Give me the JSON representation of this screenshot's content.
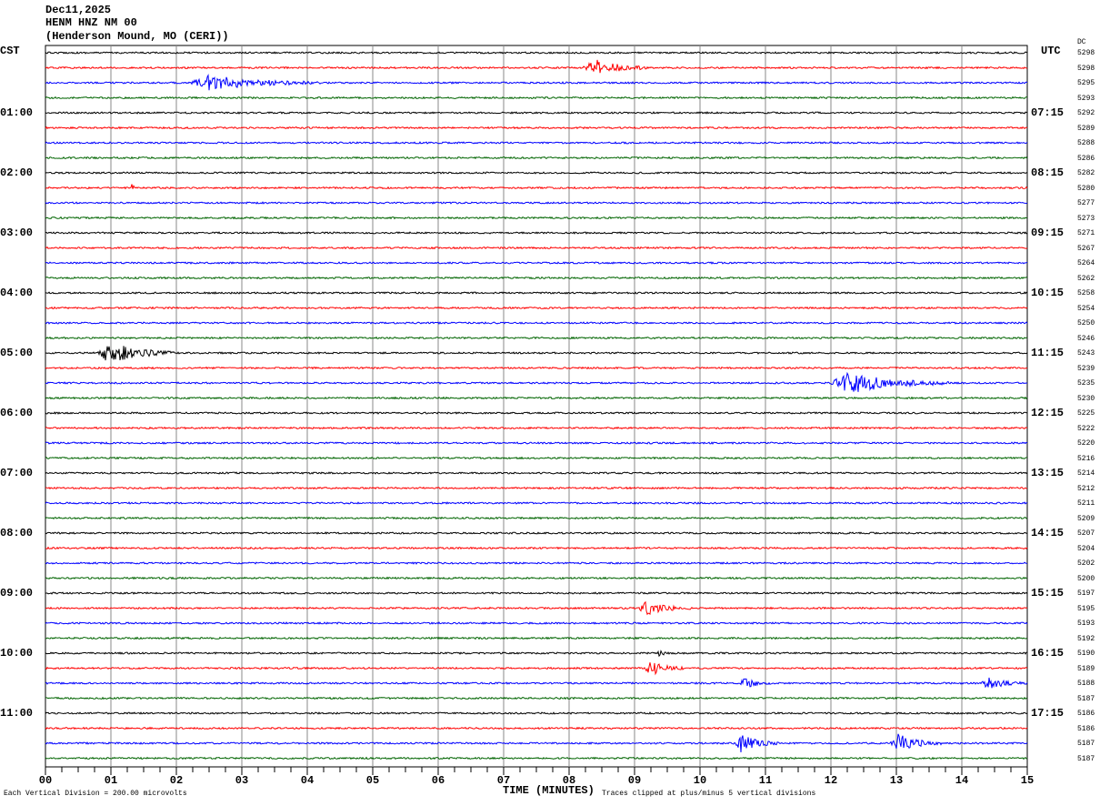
{
  "header": {
    "date": "Dec11,2025",
    "station": "HENM HNZ NM 00",
    "location": "(Henderson Mound, MO (CERI))"
  },
  "left_tz": "CST",
  "right_tz": "UTC",
  "dc_label": "DC",
  "footer": {
    "scale": "Each Vertical Division =  200.00 microvolts",
    "xlabel": "TIME (MINUTES)",
    "clip": "Traces clipped at plus/minus 5 vertical divisions"
  },
  "chart_data": {
    "type": "line",
    "title": "HENM HNZ NM 00 helicorder",
    "xlabel": "TIME (MINUTES)",
    "xlim": [
      0,
      15
    ],
    "x_ticks": [
      "00",
      "01",
      "02",
      "03",
      "04",
      "05",
      "06",
      "07",
      "08",
      "09",
      "10",
      "11",
      "12",
      "13",
      "14",
      "15"
    ],
    "trace_colors": [
      "#000000",
      "#ff0000",
      "#0000ff",
      "#006400"
    ],
    "trace_count": 48,
    "left_hour_labels": [
      "01:00",
      "02:00",
      "03:00",
      "04:00",
      "05:00",
      "06:00",
      "07:00",
      "08:00",
      "09:00",
      "10:00",
      "11:00"
    ],
    "right_hour_labels": [
      "07:15",
      "08:15",
      "09:15",
      "10:15",
      "11:15",
      "12:15",
      "13:15",
      "14:15",
      "15:15",
      "16:15",
      "17:15"
    ],
    "dc_values": [
      "5298",
      "5298",
      "5295",
      "5293",
      "5292",
      "5289",
      "5288",
      "5286",
      "5282",
      "5280",
      "5277",
      "5273",
      "5271",
      "5267",
      "5264",
      "5262",
      "5258",
      "5254",
      "5250",
      "5246",
      "5243",
      "5239",
      "5235",
      "5230",
      "5225",
      "5222",
      "5220",
      "5216",
      "5214",
      "5212",
      "5211",
      "5209",
      "5207",
      "5204",
      "5202",
      "5200",
      "5197",
      "5195",
      "5193",
      "5192",
      "5190",
      "5189",
      "5188",
      "5187",
      "5186",
      "5186",
      "5187",
      "5187"
    ],
    "events": [
      {
        "trace": 1,
        "start_min": 8.2,
        "duration_min": 1.0,
        "amplitude_div": 2.5
      },
      {
        "trace": 2,
        "start_min": 2.2,
        "duration_min": 2.0,
        "amplitude_div": 2.0
      },
      {
        "trace": 9,
        "start_min": 1.3,
        "duration_min": 0.1,
        "amplitude_div": 1.0
      },
      {
        "trace": 20,
        "start_min": 0.8,
        "duration_min": 1.2,
        "amplitude_div": 3.0
      },
      {
        "trace": 22,
        "start_min": 12.0,
        "duration_min": 1.8,
        "amplitude_div": 3.2
      },
      {
        "trace": 37,
        "start_min": 9.05,
        "duration_min": 0.8,
        "amplitude_div": 2.0
      },
      {
        "trace": 40,
        "start_min": 9.35,
        "duration_min": 0.15,
        "amplitude_div": 1.2
      },
      {
        "trace": 41,
        "start_min": 9.15,
        "duration_min": 0.6,
        "amplitude_div": 2.0
      },
      {
        "trace": 42,
        "start_min": 10.6,
        "duration_min": 0.5,
        "amplitude_div": 1.5
      },
      {
        "trace": 42,
        "start_min": 14.3,
        "duration_min": 0.7,
        "amplitude_div": 1.5
      },
      {
        "trace": 46,
        "start_min": 10.5,
        "duration_min": 0.7,
        "amplitude_div": 2.5
      },
      {
        "trace": 46,
        "start_min": 12.9,
        "duration_min": 0.8,
        "amplitude_div": 2.5
      }
    ]
  }
}
